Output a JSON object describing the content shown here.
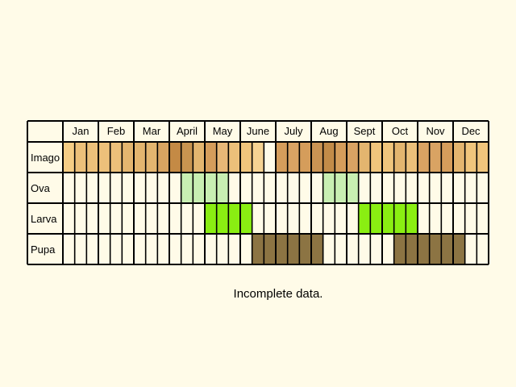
{
  "months": [
    "Jan",
    "Feb",
    "Mar",
    "April",
    "May",
    "June",
    "July",
    "Aug",
    "Sept",
    "Oct",
    "Nov",
    "Dec"
  ],
  "rows": [
    {
      "label": "Imago",
      "cells": [
        "#f5cd85",
        "#ecc07a",
        "#ecc07a",
        "#ecc07a",
        "#ecc07a",
        "#e3b56f",
        "#e3b56f",
        "#e3b56f",
        "#d8a461",
        "#c48a45",
        "#c89450",
        "#e3b56f",
        "#d59d5b",
        "#e8b877",
        "#ecc07a",
        "#f0c57c",
        "#f6d392",
        "#fffbe8",
        "#d59d5b",
        "#d9a363",
        "#d59d5b",
        "#ca9353",
        "#c28b48",
        "#d59d5b",
        "#d9a363",
        "#e3b56f",
        "#f0c57c",
        "#f0c57c",
        "#e3b56f",
        "#ecc07a",
        "#d9a363",
        "#d9a363",
        "#d59d5b",
        "#e3b56f",
        "#f0c57c",
        "#f0c57c"
      ]
    },
    {
      "label": "Ova",
      "cells": [
        "#fffbe8",
        "#fffbe8",
        "#fffbe8",
        "#fffbe8",
        "#fffbe8",
        "#fffbe8",
        "#fffbe8",
        "#fffbe8",
        "#fffbe8",
        "#fffbe8",
        "#c8efb2",
        "#c8efb2",
        "#c8efb2",
        "#c8efb2",
        "#fffbe8",
        "#fffbe8",
        "#fffbe8",
        "#fffbe8",
        "#fffbe8",
        "#fffbe8",
        "#fffbe8",
        "#fffbe8",
        "#c8efb2",
        "#c8efb2",
        "#c8efb2",
        "#fffbe8",
        "#fffbe8",
        "#fffbe8",
        "#fffbe8",
        "#fffbe8",
        "#fffbe8",
        "#fffbe8",
        "#fffbe8",
        "#fffbe8",
        "#fffbe8",
        "#fffbe8"
      ]
    },
    {
      "label": "Larva",
      "cells": [
        "#fffbe8",
        "#fffbe8",
        "#fffbe8",
        "#fffbe8",
        "#fffbe8",
        "#fffbe8",
        "#fffbe8",
        "#fffbe8",
        "#fffbe8",
        "#fffbe8",
        "#fffbe8",
        "#fffbe8",
        "#8aee12",
        "#8aee12",
        "#8aee12",
        "#8aee12",
        "#fffbe8",
        "#fffbe8",
        "#fffbe8",
        "#fffbe8",
        "#fffbe8",
        "#fffbe8",
        "#fffbe8",
        "#fffbe8",
        "#fffbe8",
        "#8aee12",
        "#8aee12",
        "#8aee12",
        "#8aee12",
        "#8aee12",
        "#fffbe8",
        "#fffbe8",
        "#fffbe8",
        "#fffbe8",
        "#fffbe8",
        "#fffbe8"
      ]
    },
    {
      "label": "Pupa",
      "cells": [
        "#fffbe8",
        "#fffbe8",
        "#fffbe8",
        "#fffbe8",
        "#fffbe8",
        "#fffbe8",
        "#fffbe8",
        "#fffbe8",
        "#fffbe8",
        "#fffbe8",
        "#fffbe8",
        "#fffbe8",
        "#fffbe8",
        "#fffbe8",
        "#fffbe8",
        "#fffbe8",
        "#8c7443",
        "#8c7443",
        "#8c7443",
        "#8c7443",
        "#8c7443",
        "#8c7443",
        "#fffbe8",
        "#fffbe8",
        "#fffbe8",
        "#fffbe8",
        "#fffbe8",
        "#fffbe8",
        "#8c7443",
        "#8c7443",
        "#8c7443",
        "#8c7443",
        "#8c7443",
        "#8c7443",
        "#fffbe8",
        "#fffbe8"
      ]
    }
  ],
  "footnote": "Incomplete data.",
  "colors": {
    "background": "#fffbe8",
    "grid": "#000000"
  }
}
